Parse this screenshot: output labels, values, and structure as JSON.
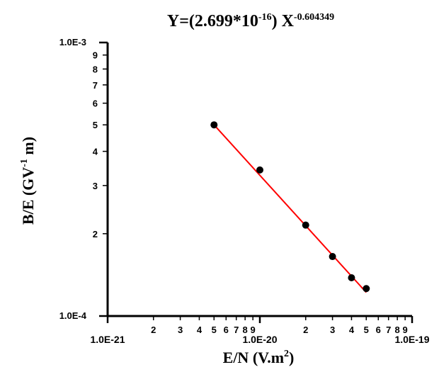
{
  "chart_data": {
    "type": "scatter",
    "title": {
      "prefix": "Y=(2.699*10",
      "coef_exp": "-16",
      "middle": ") X",
      "power": "-0.604349"
    },
    "xlabel": {
      "main": "E/N (V.m",
      "sup": "2",
      "end": ")"
    },
    "ylabel": {
      "main": "B/E (GV",
      "sup": "-1",
      "end": " m)"
    },
    "x_scale": "log",
    "y_scale": "log",
    "xlim": [
      1e-21,
      1e-19
    ],
    "ylim": [
      0.0001,
      0.001
    ],
    "x_major_ticks": [
      {
        "value": 1e-21,
        "label": "1.0E-21"
      },
      {
        "value": 1e-20,
        "label": "1.0E-20"
      },
      {
        "value": 1e-19,
        "label": "1.0E-19"
      }
    ],
    "x_minor_ticks": [
      {
        "value": 2e-21,
        "label": "2"
      },
      {
        "value": 3e-21,
        "label": "3"
      },
      {
        "value": 4e-21,
        "label": "4"
      },
      {
        "value": 5e-21,
        "label": "5"
      },
      {
        "value": 6e-21,
        "label": "6"
      },
      {
        "value": 7e-21,
        "label": "7"
      },
      {
        "value": 8e-21,
        "label": "8"
      },
      {
        "value": 9e-21,
        "label": "9"
      },
      {
        "value": 2e-20,
        "label": "2"
      },
      {
        "value": 3e-20,
        "label": "3"
      },
      {
        "value": 4e-20,
        "label": "4"
      },
      {
        "value": 5e-20,
        "label": "5"
      },
      {
        "value": 6e-20,
        "label": "6"
      },
      {
        "value": 7e-20,
        "label": "7"
      },
      {
        "value": 8e-20,
        "label": "8"
      },
      {
        "value": 9e-20,
        "label": "9"
      }
    ],
    "y_major_ticks": [
      {
        "value": 0.0001,
        "label": "1.0E-4"
      },
      {
        "value": 0.001,
        "label": "1.0E-3"
      }
    ],
    "y_minor_ticks": [
      {
        "value": 0.0002,
        "label": "2"
      },
      {
        "value": 0.0003,
        "label": "3"
      },
      {
        "value": 0.0004,
        "label": "4"
      },
      {
        "value": 0.0005,
        "label": "5"
      },
      {
        "value": 0.0006,
        "label": "6"
      },
      {
        "value": 0.0007,
        "label": "7"
      },
      {
        "value": 0.0008,
        "label": "8"
      },
      {
        "value": 0.0009,
        "label": "9"
      }
    ],
    "points": [
      {
        "x": 5e-21,
        "y": 0.0005
      },
      {
        "x": 1e-20,
        "y": 0.000342
      },
      {
        "x": 2e-20,
        "y": 0.000215
      },
      {
        "x": 3e-20,
        "y": 0.000165
      },
      {
        "x": 4e-20,
        "y": 0.000138
      },
      {
        "x": 5e-20,
        "y": 0.000126
      }
    ],
    "fit_line": {
      "x_start": 5e-21,
      "y_start": 0.0005,
      "x_end": 5e-20,
      "y_end": 0.000122
    },
    "grid": false,
    "legend": "none",
    "colors": {
      "points": "#000000",
      "fit": "#ff0000",
      "axes": "#000000"
    }
  }
}
